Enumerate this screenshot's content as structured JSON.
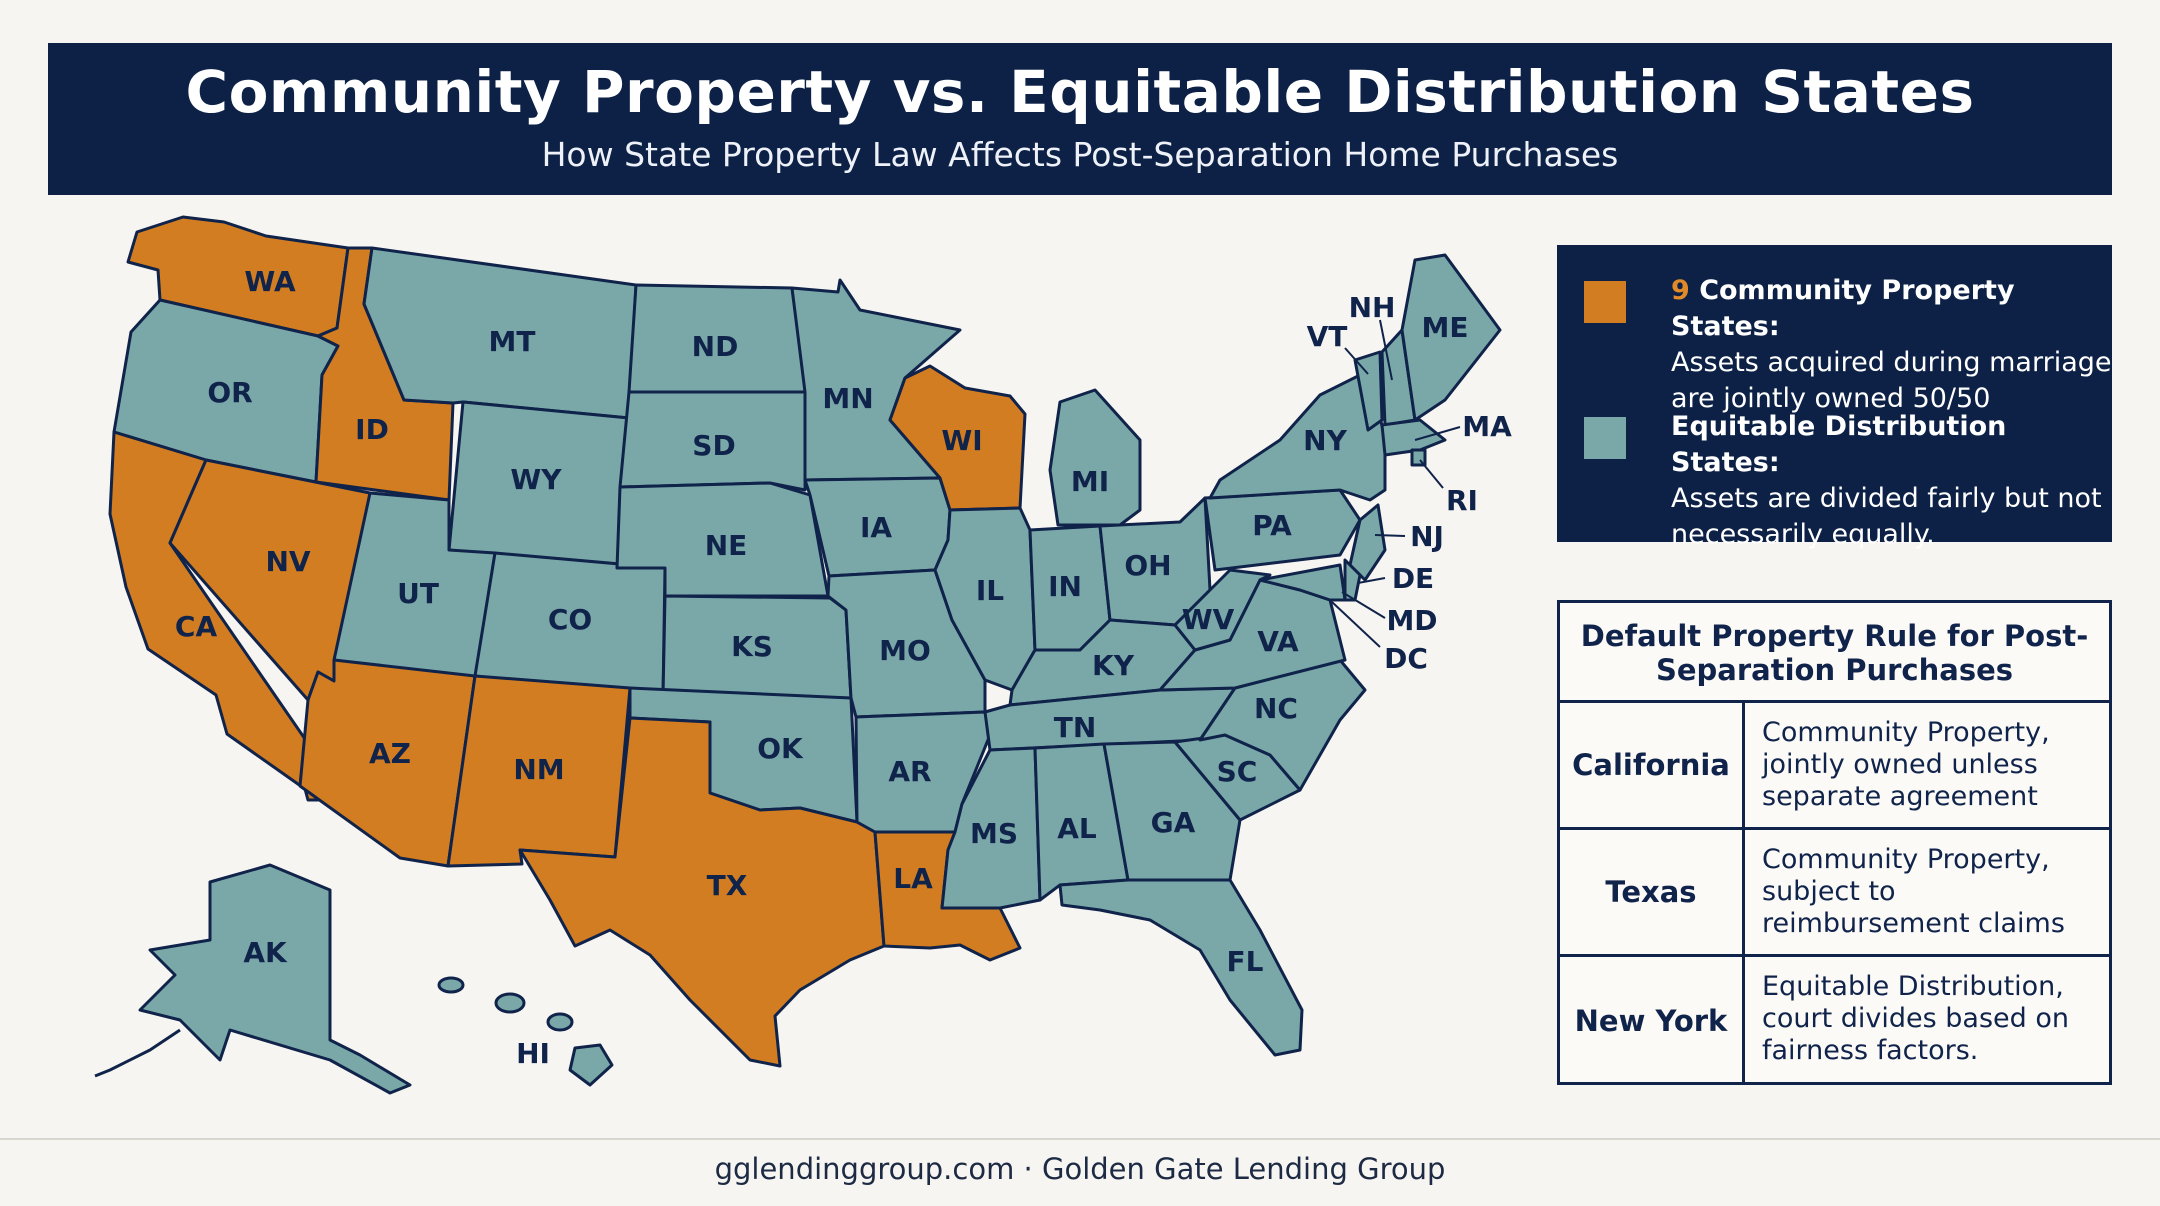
{
  "header": {
    "title": "Community Property vs. Equitable Distribution States",
    "subtitle": "How State Property Law Affects Post-Separation Home Purchases"
  },
  "colors": {
    "community_property": "#d27d21",
    "equitable_distribution": "#7aa8a9",
    "navy": "#0d2147"
  },
  "map": {
    "states": [
      "WA",
      "OR",
      "CA",
      "ID",
      "NV",
      "MT",
      "WY",
      "UT",
      "AZ",
      "CO",
      "NM",
      "ND",
      "SD",
      "NE",
      "KS",
      "OK",
      "TX",
      "MN",
      "IA",
      "MO",
      "AR",
      "LA",
      "WI",
      "IL",
      "MI",
      "IN",
      "OH",
      "KY",
      "TN",
      "MS",
      "AL",
      "GA",
      "FL",
      "SC",
      "NC",
      "VA",
      "WV",
      "PA",
      "NY",
      "VT",
      "NH",
      "ME",
      "MA",
      "RI",
      "NJ",
      "DE",
      "MD",
      "DC",
      "AK",
      "HI"
    ],
    "community_property_states": [
      "WA",
      "CA",
      "ID",
      "NV",
      "AZ",
      "NM",
      "TX",
      "LA",
      "WI"
    ]
  },
  "legend": {
    "community": {
      "count": "9",
      "title": " Community Property States:",
      "text": "Assets acquired during marriage are jointly owned 50/50"
    },
    "equitable": {
      "title": "Equitable Distribution States:",
      "text": "Assets are divided fairly but not necessarily equally."
    }
  },
  "rule_table": {
    "header": "Default Property Rule for Post-Separation Purchases",
    "rows": [
      {
        "state": "California",
        "rule": "Community Property, jointly owned unless separate agreement"
      },
      {
        "state": "Texas",
        "rule": "Community Property, subject to reimbursement claims"
      },
      {
        "state": "New York",
        "rule": "Equitable Distribution, court divides based on fairness factors."
      }
    ]
  },
  "footer": {
    "text": "gglendinggroup.com · Golden Gate Lending Group"
  }
}
